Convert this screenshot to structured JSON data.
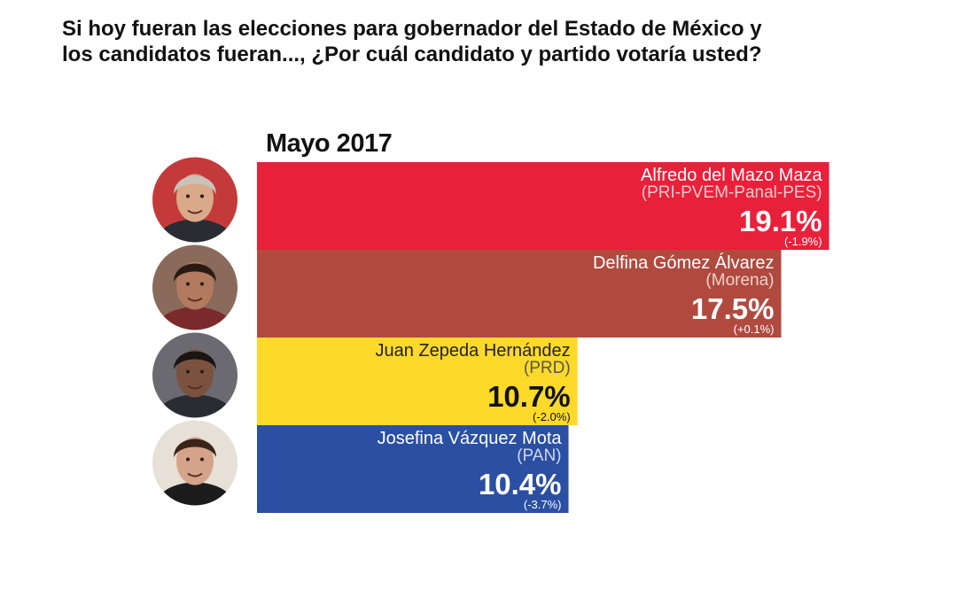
{
  "question": {
    "line1": "Si hoy fueran las elecciones para gobernador del Estado de México y",
    "line2": "los candidatos fueran..., ¿Por cuál candidato y partido votaría usted?"
  },
  "period": "Mayo 2017",
  "chart_data": {
    "type": "bar",
    "orientation": "horizontal",
    "title": "Si hoy fueran las elecciones para gobernador del Estado de México y los candidatos fueran..., ¿Por cuál candidato y partido votaría usted?",
    "subtitle": "Mayo 2017",
    "xlabel": "",
    "ylabel": "",
    "grid": false,
    "bars": [
      {
        "candidate": "Alfredo del Mazo Maza",
        "party": "(PRI-PVEM-Panal-PES)",
        "value": 19.1,
        "value_label": "19.1%",
        "change": "(-1.9%)",
        "color": "#e8203a",
        "photo": "candidate-photo-icon"
      },
      {
        "candidate": "Delfina Gómez Álvarez",
        "party": "(Morena)",
        "value": 17.5,
        "value_label": "17.5%",
        "change": "(+0.1%)",
        "color": "#b04a3f",
        "photo": "candidate-photo-icon"
      },
      {
        "candidate": "Juan Zepeda Hernández",
        "party": "(PRD)",
        "value": 10.7,
        "value_label": "10.7%",
        "change": "(-2.0%)",
        "color": "#fdd92a",
        "photo": "candidate-photo-icon"
      },
      {
        "candidate": "Josefina Vázquez Mota",
        "party": "(PAN)",
        "value": 10.4,
        "value_label": "10.4%",
        "change": "(-3.7%)",
        "color": "#2a4fa3",
        "photo": "candidate-photo-icon"
      }
    ]
  }
}
